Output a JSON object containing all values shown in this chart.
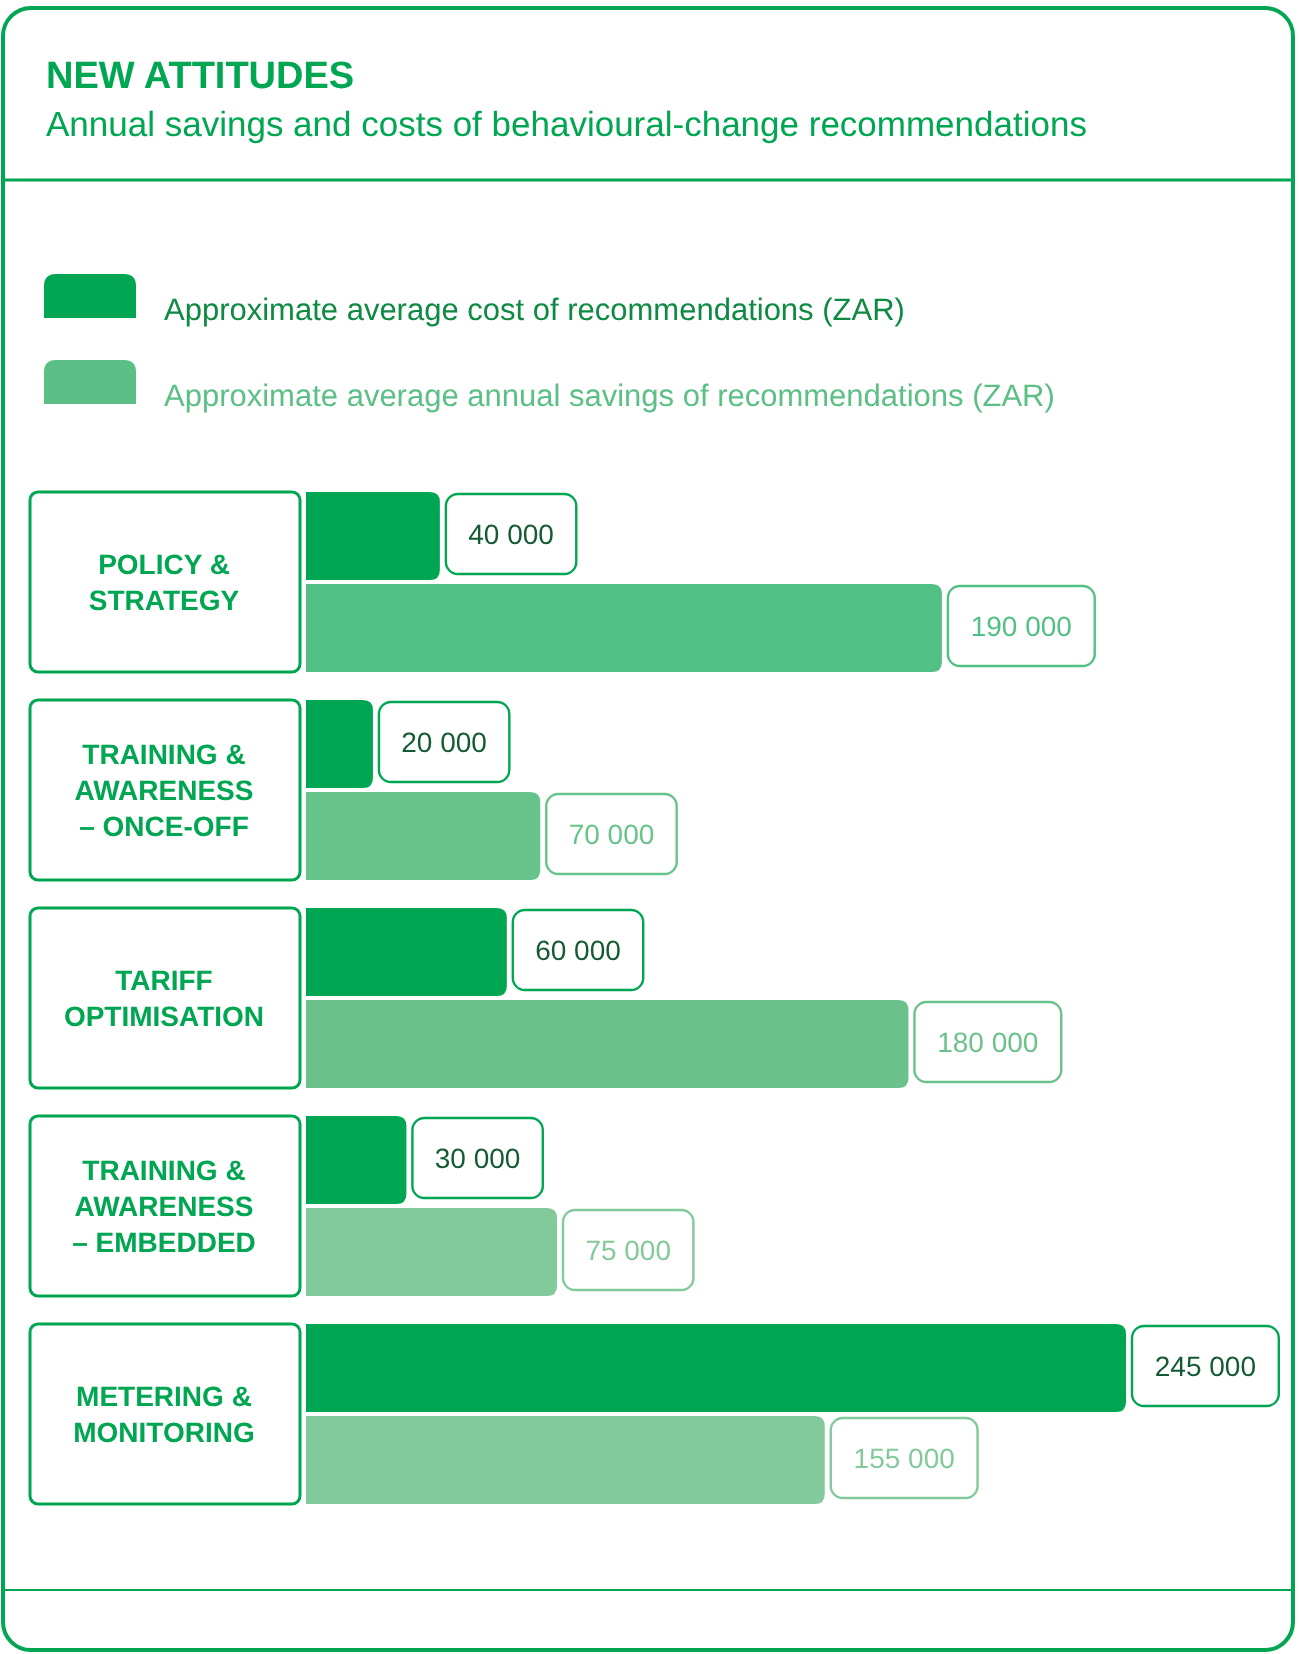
{
  "chart_data": {
    "type": "bar",
    "orientation": "horizontal",
    "title": "NEW ATTITUDES",
    "subtitle": "Annual savings and costs of behavioural-change recommendations",
    "categories": [
      "POLICY &\nSTRATEGY",
      "TRAINING &\nAWARENESS\n– ONCE-OFF",
      "TARIFF\nOPTIMISATION",
      "TRAINING &\nAWARENESS\n– EMBEDDED",
      "METERING &\nMONITORING"
    ],
    "series": [
      {
        "name": "Approximate average cost of recommendations (ZAR)",
        "color": "#00a651",
        "values": [
          40000,
          20000,
          60000,
          30000,
          245000
        ],
        "value_labels": [
          "40 000",
          "20 000",
          "60 000",
          "30 000",
          "245 000"
        ]
      },
      {
        "name": "Approximate average annual savings of recommendations (ZAR)",
        "color": "#5cbf85",
        "colors": [
          "#52c084",
          "#66c38a",
          "#6ac28a",
          "#82c99b",
          "#82c99b"
        ],
        "values": [
          190000,
          70000,
          180000,
          75000,
          155000
        ],
        "value_labels": [
          "190 000",
          "70 000",
          "180 000",
          "75 000",
          "155 000"
        ]
      }
    ],
    "legend": "top left"
  }
}
